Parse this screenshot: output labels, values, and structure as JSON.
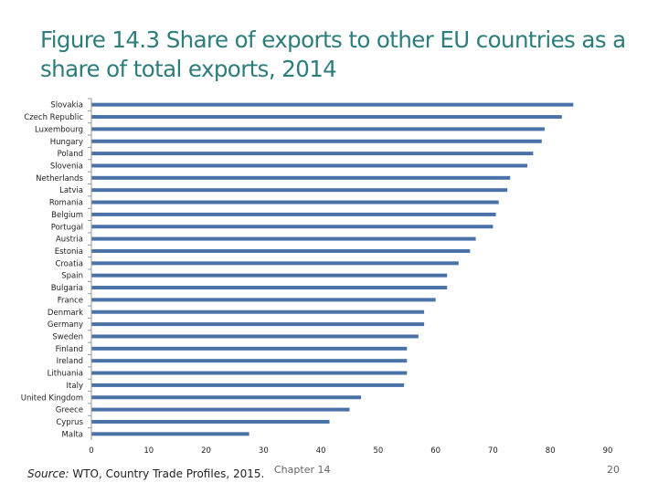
{
  "slide": {
    "source_label": "Source:",
    "source_text": " WTO, Country Trade Profiles, 2015.",
    "chapter": "Chapter 14",
    "page_number": "20"
  },
  "colors": {
    "bar": "#4a72a8",
    "axis": "#999999"
  },
  "chart_data": {
    "type": "bar",
    "orientation": "horizontal",
    "title": "Figure 14.3 Share of exports to other EU countries as a share of total exports, 2014",
    "xlabel": "",
    "ylabel": "",
    "xlim": [
      0,
      90
    ],
    "xticks": [
      0,
      10,
      20,
      30,
      40,
      50,
      60,
      70,
      80,
      90
    ],
    "categories": [
      "Slovakia",
      "Czech Republic",
      "Luxembourg",
      "Hungary",
      "Poland",
      "Slovenia",
      "Netherlands",
      "Latvia",
      "Romania",
      "Belgium",
      "Portugal",
      "Austria",
      "Estonia",
      "Croatia",
      "Spain",
      "Bulgaria",
      "France",
      "Denmark",
      "Germany",
      "Sweden",
      "Finland",
      "Ireland",
      "Lithuania",
      "Italy",
      "United Kingdom",
      "Greece",
      "Cyprus",
      "Malta"
    ],
    "values": [
      84,
      82,
      79,
      78.5,
      77,
      76,
      73,
      72.5,
      71,
      70.5,
      70,
      67,
      66,
      64,
      62,
      62,
      60,
      58,
      58,
      57,
      55,
      55,
      55,
      54.5,
      47,
      45,
      41.5,
      27.5
    ],
    "grid": false,
    "legend": "none"
  }
}
